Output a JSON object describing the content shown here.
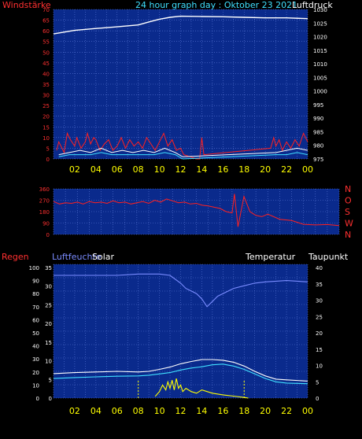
{
  "header": {
    "left_label": "Windstärke",
    "title": "24 hour graph day : Oktober 23 2021",
    "right_label": "Luftdruck"
  },
  "colors": {
    "plot_bg": "#0a2a8c",
    "grid": "#5a78d8",
    "red_axis": "#ff3030",
    "white": "#ffffff",
    "time_label": "#ffff00",
    "humidity": "#7a8cff",
    "temperature": "#ffffff",
    "dewpoint": "#40e0ff",
    "solar": "#ffff00",
    "wind": "#ff2020",
    "gust_white": "#ffffff",
    "gust_cyan": "#40e0ff"
  },
  "time_axis": [
    "02",
    "04",
    "06",
    "08",
    "10",
    "12",
    "14",
    "16",
    "18",
    "20",
    "22",
    "00"
  ],
  "chart_data": [
    {
      "id": "wind_pressure",
      "type": "line",
      "left_axis_label": "Windstärke",
      "right_axis_label": "Luftdruck",
      "ylim_left": [
        0,
        70
      ],
      "yticks_left": [
        "0",
        "5",
        "10",
        "15",
        "20",
        "25",
        "30",
        "35",
        "40",
        "45",
        "50",
        "55",
        "60",
        "65",
        "70"
      ],
      "ylim_right": [
        975,
        1030
      ],
      "yticks_right": [
        "975",
        "980",
        "985",
        "990",
        "995",
        "1000",
        "1005",
        "1010",
        "1015",
        "1020",
        "1025",
        "1030"
      ],
      "xlim": [
        0,
        24
      ],
      "series": [
        {
          "key": "pressure",
          "axis": "right",
          "color": "white",
          "x": [
            0,
            2,
            4,
            6,
            8,
            9,
            10,
            11,
            12,
            14,
            16,
            18,
            20,
            22,
            24
          ],
          "y": [
            1021,
            1022.3,
            1023,
            1023.6,
            1024.3,
            1025.4,
            1026.4,
            1027.1,
            1027.5,
            1027.4,
            1027.3,
            1027.1,
            1026.9,
            1026.9,
            1026.6
          ]
        },
        {
          "key": "wind_speed",
          "axis": "left",
          "color": "wind",
          "x": [
            0.3,
            0.5,
            1,
            1.3,
            1.6,
            2,
            2.2,
            2.6,
            3,
            3.2,
            3.5,
            3.8,
            4,
            4.4,
            4.8,
            5.2,
            5.6,
            6,
            6.4,
            6.8,
            7.2,
            7.6,
            8,
            8.4,
            8.8,
            9.2,
            9.6,
            10,
            10.4,
            10.8,
            11.2,
            11.6,
            12,
            12.3,
            13.5,
            13.8,
            14,
            14.2,
            20.5,
            20.8,
            21,
            21.3,
            21.6,
            22,
            22.4,
            22.8,
            23.2,
            23.6,
            24
          ],
          "y": [
            4,
            8,
            3,
            12,
            9,
            6,
            10,
            5,
            8,
            12,
            7,
            10,
            9,
            4,
            7,
            9,
            4,
            6,
            10,
            5,
            9,
            6,
            8,
            5,
            10,
            7,
            4,
            8,
            12,
            6,
            9,
            4,
            5,
            2,
            0,
            0,
            10,
            2,
            5,
            10,
            6,
            9,
            4,
            8,
            5,
            9,
            6,
            12,
            8
          ]
        },
        {
          "key": "wind_gust_white",
          "axis": "left",
          "color": "gust_white",
          "x": [
            0.5,
            1.5,
            2.5,
            3.5,
            4.5,
            5.5,
            6.5,
            7.5,
            8.5,
            9.5,
            10.5,
            11.5,
            12.2,
            21,
            22,
            23,
            24
          ],
          "y": [
            2,
            3,
            4,
            3,
            5,
            3,
            4,
            3,
            4,
            3,
            5,
            3,
            1,
            3,
            4,
            5,
            4
          ]
        },
        {
          "key": "wind_gust_cyan",
          "axis": "left",
          "color": "gust_cyan",
          "x": [
            0.5,
            1.5,
            2.5,
            3.5,
            4.5,
            5.5,
            6.5,
            7.5,
            8.5,
            9.5,
            10.5,
            11.5,
            12.2,
            21,
            22,
            23,
            24
          ],
          "y": [
            1,
            2,
            2,
            2,
            3,
            2,
            2,
            2,
            2,
            2,
            3,
            2,
            0,
            2,
            2,
            3,
            2
          ]
        }
      ]
    },
    {
      "id": "wind_direction",
      "type": "line",
      "ylim": [
        0,
        360
      ],
      "yticks": [
        "0",
        "90",
        "180",
        "270",
        "360"
      ],
      "direction_labels": [
        "N",
        "W",
        "S",
        "O",
        "N"
      ],
      "xlim": [
        0,
        24
      ],
      "series": [
        {
          "key": "direction",
          "color": "wind",
          "x": [
            0,
            0.5,
            1,
            1.5,
            2,
            2.5,
            3,
            3.5,
            4,
            4.5,
            5,
            5.5,
            6,
            6.5,
            7,
            7.5,
            8,
            8.5,
            9,
            9.5,
            10,
            10.5,
            11,
            11.5,
            12,
            12.5,
            13,
            13.5,
            14,
            14.5,
            15,
            15.2,
            15.5,
            16,
            16.5,
            17,
            17.5,
            18,
            19,
            20,
            21,
            22,
            23,
            24
          ],
          "y": [
            260,
            240,
            250,
            245,
            255,
            240,
            260,
            250,
            255,
            245,
            265,
            250,
            255,
            240,
            250,
            260,
            245,
            270,
            255,
            280,
            265,
            250,
            255,
            240,
            245,
            230,
            225,
            215,
            205,
            180,
            170,
            320,
            60,
            300,
            180,
            150,
            140,
            160,
            120,
            110,
            80,
            75,
            78,
            70
          ]
        }
      ]
    },
    {
      "id": "humidity_temp_solar",
      "type": "line",
      "left_axis_label": "Regen",
      "second_axis_label": "Luftfeuchte",
      "third_axis_label": "Solar",
      "right_axis_label": "Temperatur",
      "far_right_axis_label": "Taupunkt",
      "ylim_humidity": [
        0,
        100
      ],
      "yticks_humidity": [
        "0",
        "10",
        "20",
        "30",
        "40",
        "50",
        "60",
        "70",
        "80",
        "90",
        "100"
      ],
      "ylim_rain": [
        0,
        35
      ],
      "yticks_rain": [
        "0",
        "5",
        "10",
        "15",
        "20",
        "25",
        "30",
        "35"
      ],
      "ylim_temp": [
        0,
        40
      ],
      "yticks_temp": [
        "0",
        "5",
        "10",
        "15",
        "20",
        "25",
        "30",
        "35",
        "40"
      ],
      "xlim": [
        0,
        24
      ],
      "series": [
        {
          "key": "humidity",
          "axis": "humidity",
          "color": "humidity",
          "x": [
            0,
            2,
            4,
            6,
            8,
            9,
            10,
            11,
            12,
            12.5,
            13,
            13.5,
            14,
            14.5,
            15,
            15.5,
            16,
            16.5,
            17,
            18,
            19,
            20,
            22,
            24
          ],
          "y": [
            94,
            94,
            94,
            94,
            95,
            95,
            95,
            94,
            88,
            84,
            82,
            80,
            76,
            70,
            74,
            78,
            80,
            82,
            84,
            86,
            88,
            89,
            90,
            89
          ]
        },
        {
          "key": "temperature",
          "axis": "temp",
          "color": "temperature",
          "x": [
            0,
            2,
            4,
            6,
            8,
            9,
            10,
            11,
            12,
            13,
            14,
            15,
            16,
            17,
            18,
            19,
            20,
            21,
            22,
            24
          ],
          "y": [
            7.5,
            7.8,
            8,
            8.2,
            8,
            8.2,
            8.8,
            9.5,
            10.5,
            11.2,
            11.8,
            11.8,
            11.6,
            11,
            9.8,
            8.2,
            6.8,
            5.8,
            5.6,
            5.2
          ]
        },
        {
          "key": "dewpoint",
          "axis": "temp",
          "color": "dewpoint",
          "x": [
            0,
            2,
            4,
            6,
            8,
            9,
            10,
            11,
            12,
            13,
            14,
            15,
            16,
            17,
            18,
            19,
            20,
            21,
            22,
            24
          ],
          "y": [
            6,
            6.3,
            6.5,
            6.7,
            6.8,
            7,
            7.4,
            7.8,
            8.6,
            9.2,
            9.6,
            10.2,
            10.4,
            9.8,
            8.8,
            7.4,
            6,
            5,
            4.6,
            4.4
          ]
        },
        {
          "key": "solar",
          "axis": "temp",
          "color": "solar",
          "x": [
            9.6,
            10,
            10.3,
            10.6,
            10.8,
            11,
            11.2,
            11.4,
            11.6,
            11.8,
            12,
            12.2,
            12.5,
            13,
            13.5,
            14,
            14.5,
            15,
            16,
            17,
            18,
            18.4
          ],
          "y": [
            0.5,
            2,
            4,
            2.5,
            5,
            3,
            5.5,
            2.5,
            6,
            3,
            4,
            2,
            3,
            2,
            1.5,
            2.5,
            2,
            1.5,
            1,
            0.6,
            0.2,
            0
          ]
        }
      ]
    }
  ]
}
